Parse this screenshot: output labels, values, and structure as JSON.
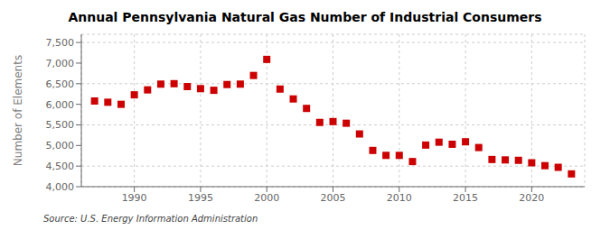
{
  "chart_data": {
    "type": "scatter",
    "title": "Annual Pennsylvania Natural Gas Number of Industrial Consumers",
    "ylabel": "Number of Elements",
    "annotations": [
      "Source: U.S. Energy Information Administration"
    ],
    "color": "#cc0000",
    "marker": "square",
    "grid": true,
    "x": [
      1987,
      1988,
      1989,
      1990,
      1991,
      1992,
      1993,
      1994,
      1995,
      1996,
      1997,
      1998,
      1999,
      2000,
      2001,
      2002,
      2003,
      2004,
      2005,
      2006,
      2007,
      2008,
      2009,
      2010,
      2011,
      2012,
      2013,
      2014,
      2015,
      2016,
      2017,
      2018,
      2019,
      2020,
      2021,
      2022,
      2023
    ],
    "values": [
      6080,
      6050,
      6000,
      6230,
      6350,
      6490,
      6500,
      6430,
      6380,
      6340,
      6480,
      6490,
      6700,
      7090,
      6370,
      6130,
      5900,
      5560,
      5580,
      5540,
      5280,
      4880,
      4760,
      4760,
      4610,
      5010,
      5080,
      5030,
      5090,
      4950,
      4660,
      4650,
      4640,
      4580,
      4510,
      4470,
      4310
    ],
    "xlim": [
      1986,
      2024
    ],
    "xticks": [
      1990,
      1995,
      2000,
      2005,
      2010,
      2015,
      2020
    ],
    "ylim": [
      4000,
      7700
    ],
    "yticks": [
      {
        "value": 4000,
        "label": "4,000"
      },
      {
        "value": 4500,
        "label": "4,500"
      },
      {
        "value": 5000,
        "label": "5,000"
      },
      {
        "value": 5500,
        "label": "5,500"
      },
      {
        "value": 6000,
        "label": "6,000"
      },
      {
        "value": 6500,
        "label": "6,500"
      },
      {
        "value": 7000,
        "label": "7,000"
      },
      {
        "value": 7500,
        "label": "7,500"
      }
    ]
  }
}
